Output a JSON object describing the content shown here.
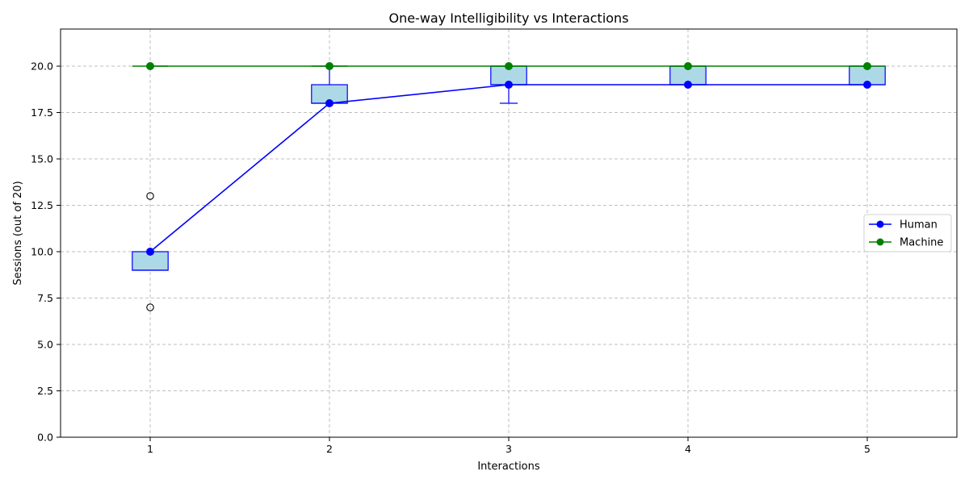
{
  "chart_data": {
    "type": "line",
    "title": "One-way Intelligibility vs Interactions",
    "xlabel": "Interactions",
    "ylabel": "Sessions (out of 20)",
    "x": [
      1,
      2,
      3,
      4,
      5
    ],
    "xlim": [
      0.5,
      5.5
    ],
    "ylim": [
      0,
      22
    ],
    "x_ticks": [
      "1",
      "2",
      "3",
      "4",
      "5"
    ],
    "y_ticks": [
      "0.0",
      "2.5",
      "5.0",
      "7.5",
      "10.0",
      "12.5",
      "15.0",
      "17.5",
      "20.0"
    ],
    "grid": true,
    "legend_position": "center-right",
    "series": [
      {
        "name": "Human",
        "color": "#0000ff",
        "marker": "circle",
        "values": [
          10,
          18,
          19,
          19,
          19
        ]
      },
      {
        "name": "Machine",
        "color": "#008000",
        "marker": "circle",
        "values": [
          20,
          20,
          20,
          20,
          20
        ]
      }
    ],
    "boxplots": {
      "fill_color": "#add8e6",
      "edge_color": "#0000ff",
      "boxes": [
        {
          "x": 1,
          "q1": 9,
          "median": 9,
          "q3": 10,
          "whisker_low": 9,
          "whisker_high": 10,
          "outliers": [
            7,
            13
          ]
        },
        {
          "x": 2,
          "q1": 18,
          "median": 18,
          "q3": 19,
          "whisker_low": 18,
          "whisker_high": 20,
          "outliers": []
        },
        {
          "x": 3,
          "q1": 19,
          "median": 19,
          "q3": 20,
          "whisker_low": 18,
          "whisker_high": 20,
          "outliers": []
        },
        {
          "x": 4,
          "q1": 19,
          "median": 19,
          "q3": 20,
          "whisker_low": 19,
          "whisker_high": 20,
          "outliers": []
        },
        {
          "x": 5,
          "q1": 19,
          "median": 19,
          "q3": 20,
          "whisker_low": 19,
          "whisker_high": 20,
          "outliers": []
        }
      ],
      "machine_boxes": [
        {
          "x": 1,
          "value": 20
        },
        {
          "x": 2,
          "value": 20
        },
        {
          "x": 3,
          "value": 20
        },
        {
          "x": 4,
          "value": 20
        },
        {
          "x": 5,
          "value": 20
        }
      ]
    }
  }
}
